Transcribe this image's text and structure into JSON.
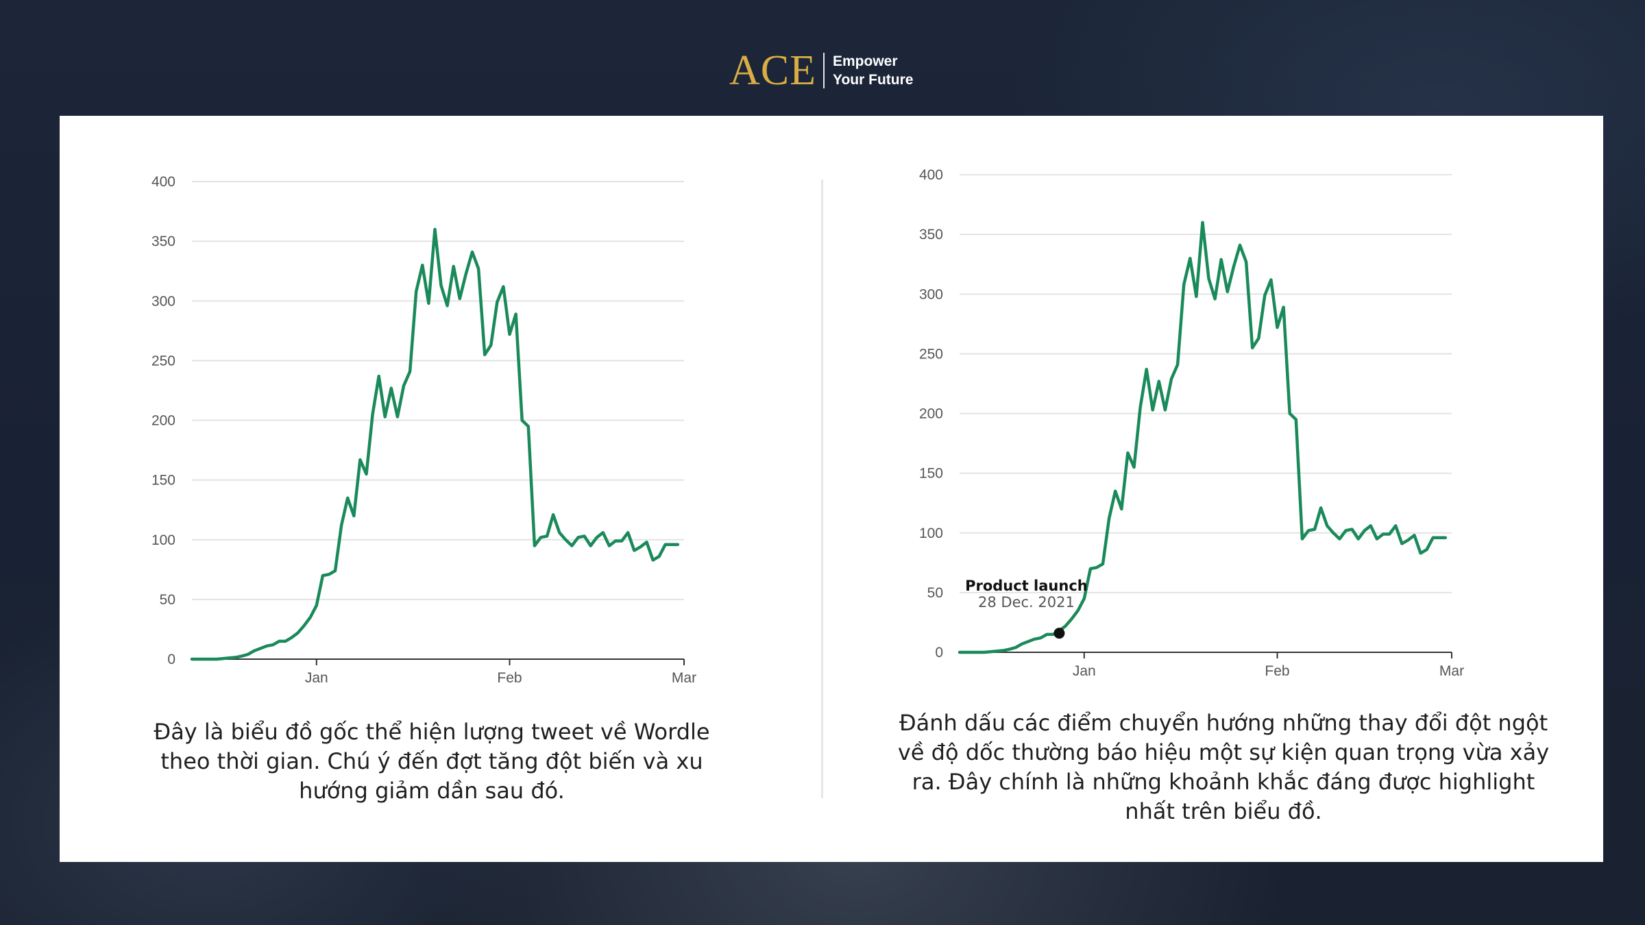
{
  "brand": {
    "name": "ACE",
    "tagline_line1": "Empower",
    "tagline_line2": "Your Future",
    "color": "#d9ac44"
  },
  "colors": {
    "line": "#1a8a5a",
    "marker": "#111111",
    "grid": "#e3e3e3",
    "axis": "#333333"
  },
  "captions": {
    "left": "Đây là biểu đồ gốc thể hiện lượng tweet về Wordle theo thời gian. Chú ý đến đợt tăng đột biến và xu hướng giảm dần sau đó.",
    "right": "Đánh dấu các điểm chuyển hướng những thay đổi đột ngột về độ dốc thường báo hiệu một sự kiện quan trọng vừa xảy ra. Đây chính là những khoảnh khắc đáng được highlight nhất trên biểu đồ."
  },
  "chart_data": [
    {
      "type": "line",
      "title": "",
      "xlabel": "",
      "ylabel": "",
      "ylim": [
        0,
        400
      ],
      "yticks": [
        0,
        50,
        100,
        150,
        200,
        250,
        300,
        350,
        400
      ],
      "xticks": [
        {
          "label": "Jan",
          "x": "2022-01-01"
        },
        {
          "label": "Feb",
          "x": "2022-02-01"
        },
        {
          "label": "Mar",
          "x": "2022-03-01"
        }
      ],
      "xlim": [
        "2021-12-12",
        "2022-03-01"
      ],
      "grid": "horizontal",
      "series": [
        {
          "x": [
            "2021-12-12",
            "2021-12-13",
            "2021-12-14",
            "2021-12-15",
            "2021-12-16",
            "2021-12-17",
            "2021-12-18",
            "2021-12-19",
            "2021-12-20",
            "2021-12-21",
            "2021-12-22",
            "2021-12-23",
            "2021-12-24",
            "2021-12-25",
            "2021-12-26",
            "2021-12-27",
            "2021-12-28",
            "2021-12-29",
            "2021-12-30",
            "2021-12-31",
            "2022-01-01",
            "2022-01-02",
            "2022-01-03",
            "2022-01-04",
            "2022-01-05",
            "2022-01-06",
            "2022-01-07",
            "2022-01-08",
            "2022-01-09",
            "2022-01-10",
            "2022-01-11",
            "2022-01-12",
            "2022-01-13",
            "2022-01-14",
            "2022-01-15",
            "2022-01-16",
            "2022-01-17",
            "2022-01-18",
            "2022-01-19",
            "2022-01-20",
            "2022-01-21",
            "2022-01-22",
            "2022-01-23",
            "2022-01-24",
            "2022-01-25",
            "2022-01-26",
            "2022-01-27",
            "2022-01-28",
            "2022-01-29",
            "2022-01-30",
            "2022-01-31",
            "2022-02-01",
            "2022-02-02",
            "2022-02-03",
            "2022-02-04",
            "2022-02-05",
            "2022-02-06",
            "2022-02-07",
            "2022-02-08",
            "2022-02-09",
            "2022-02-10",
            "2022-02-11",
            "2022-02-12",
            "2022-02-13",
            "2022-02-14",
            "2022-02-15",
            "2022-02-16",
            "2022-02-17",
            "2022-02-18",
            "2022-02-19",
            "2022-02-20",
            "2022-02-21",
            "2022-02-22",
            "2022-02-23",
            "2022-02-24",
            "2022-02-25",
            "2022-02-26",
            "2022-02-27",
            "2022-02-28"
          ],
          "y": [
            0,
            0,
            0,
            0,
            0,
            0.5,
            1,
            1.5,
            2.5,
            4,
            7,
            9,
            11,
            12,
            15,
            15,
            18,
            22,
            28,
            35,
            45,
            70,
            71,
            74,
            112,
            135,
            120,
            167,
            155,
            205,
            237,
            203,
            227,
            203,
            229,
            241,
            308,
            330,
            298,
            360,
            313,
            296,
            329,
            302,
            323,
            341,
            327,
            255,
            263,
            299,
            312,
            272,
            289,
            200,
            195,
            95,
            102,
            103,
            121,
            106,
            100,
            95,
            102,
            103,
            95,
            102,
            106,
            95,
            99,
            99,
            106,
            91,
            94,
            98,
            83,
            86,
            96,
            96,
            96
          ]
        }
      ]
    },
    {
      "type": "line",
      "title": "",
      "xlabel": "",
      "ylabel": "",
      "ylim": [
        0,
        400
      ],
      "yticks": [
        0,
        50,
        100,
        150,
        200,
        250,
        300,
        350,
        400
      ],
      "xticks": [
        {
          "label": "Jan",
          "x": "2022-01-01"
        },
        {
          "label": "Feb",
          "x": "2022-02-01"
        },
        {
          "label": "Mar",
          "x": "2022-03-01"
        }
      ],
      "xlim": [
        "2021-12-12",
        "2022-03-01"
      ],
      "grid": "horizontal",
      "annotation": {
        "title": "Product launch",
        "date": "28 Dec. 2021",
        "x": "2021-12-28",
        "y": 16
      },
      "series": [
        {
          "x": [
            "2021-12-12",
            "2021-12-13",
            "2021-12-14",
            "2021-12-15",
            "2021-12-16",
            "2021-12-17",
            "2021-12-18",
            "2021-12-19",
            "2021-12-20",
            "2021-12-21",
            "2021-12-22",
            "2021-12-23",
            "2021-12-24",
            "2021-12-25",
            "2021-12-26",
            "2021-12-27",
            "2021-12-28",
            "2021-12-29",
            "2021-12-30",
            "2021-12-31",
            "2022-01-01",
            "2022-01-02",
            "2022-01-03",
            "2022-01-04",
            "2022-01-05",
            "2022-01-06",
            "2022-01-07",
            "2022-01-08",
            "2022-01-09",
            "2022-01-10",
            "2022-01-11",
            "2022-01-12",
            "2022-01-13",
            "2022-01-14",
            "2022-01-15",
            "2022-01-16",
            "2022-01-17",
            "2022-01-18",
            "2022-01-19",
            "2022-01-20",
            "2022-01-21",
            "2022-01-22",
            "2022-01-23",
            "2022-01-24",
            "2022-01-25",
            "2022-01-26",
            "2022-01-27",
            "2022-01-28",
            "2022-01-29",
            "2022-01-30",
            "2022-01-31",
            "2022-02-01",
            "2022-02-02",
            "2022-02-03",
            "2022-02-04",
            "2022-02-05",
            "2022-02-06",
            "2022-02-07",
            "2022-02-08",
            "2022-02-09",
            "2022-02-10",
            "2022-02-11",
            "2022-02-12",
            "2022-02-13",
            "2022-02-14",
            "2022-02-15",
            "2022-02-16",
            "2022-02-17",
            "2022-02-18",
            "2022-02-19",
            "2022-02-20",
            "2022-02-21",
            "2022-02-22",
            "2022-02-23",
            "2022-02-24",
            "2022-02-25",
            "2022-02-26",
            "2022-02-27",
            "2022-02-28"
          ],
          "y": [
            0,
            0,
            0,
            0,
            0,
            0.5,
            1,
            1.5,
            2.5,
            4,
            7,
            9,
            11,
            12,
            15,
            15,
            18,
            22,
            28,
            35,
            45,
            70,
            71,
            74,
            112,
            135,
            120,
            167,
            155,
            205,
            237,
            203,
            227,
            203,
            229,
            241,
            308,
            330,
            298,
            360,
            313,
            296,
            329,
            302,
            323,
            341,
            327,
            255,
            263,
            299,
            312,
            272,
            289,
            200,
            195,
            95,
            102,
            103,
            121,
            106,
            100,
            95,
            102,
            103,
            95,
            102,
            106,
            95,
            99,
            99,
            106,
            91,
            94,
            98,
            83,
            86,
            96,
            96,
            96
          ]
        }
      ]
    }
  ]
}
